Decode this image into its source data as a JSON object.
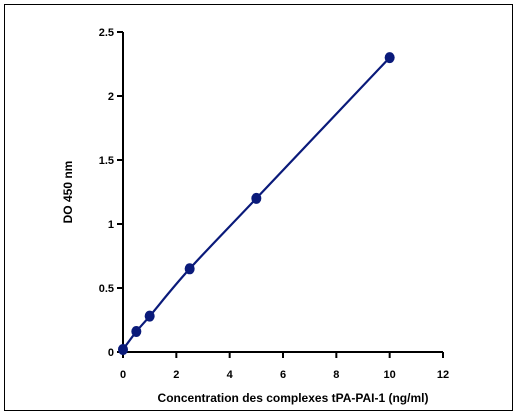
{
  "chart_data": {
    "type": "line",
    "title": "",
    "xlabel": "Concentration des complexes tPA-PAI-1 (ng/ml)",
    "ylabel": "DO 450 nm",
    "xlim": [
      0,
      12
    ],
    "ylim": [
      0,
      2.5
    ],
    "x_ticks": [
      "0",
      "2",
      "4",
      "6",
      "8",
      "10",
      "12"
    ],
    "y_ticks": [
      "0",
      "0.5",
      "1",
      "1.5",
      "2",
      "2.5"
    ],
    "grid": false,
    "legend": "none",
    "series": [
      {
        "x": [
          0,
          0.5,
          1,
          2.5,
          5,
          10
        ],
        "y": [
          0.02,
          0.16,
          0.28,
          0.65,
          1.2,
          2.3
        ],
        "color": "#0a1a7a"
      }
    ]
  }
}
